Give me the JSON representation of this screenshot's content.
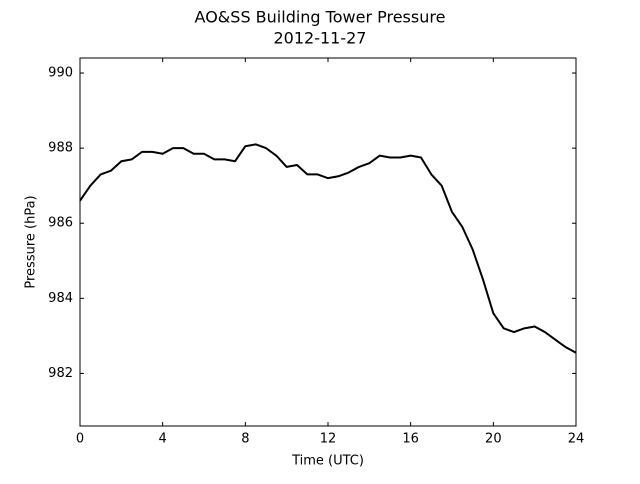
{
  "chart_data": {
    "type": "line",
    "title": "AO&SS Building Tower Pressure",
    "subtitle": "2012-11-27",
    "xlabel": "Time (UTC)",
    "ylabel": "Pressure (hPa)",
    "x": [
      0,
      0.5,
      1,
      1.5,
      2,
      2.5,
      3,
      3.5,
      4,
      4.5,
      5,
      5.5,
      6,
      6.5,
      7,
      7.5,
      8,
      8.5,
      9,
      9.5,
      10,
      10.5,
      11,
      11.5,
      12,
      12.5,
      13,
      13.5,
      14,
      14.5,
      15,
      15.5,
      16,
      16.5,
      17,
      17.5,
      18,
      18.5,
      19,
      19.5,
      20,
      20.5,
      21,
      21.5,
      22,
      22.5,
      23,
      23.5,
      24
    ],
    "series": [
      {
        "name": "Pressure",
        "color": "#000000",
        "values": [
          986.6,
          987.0,
          987.3,
          987.4,
          987.65,
          987.7,
          987.9,
          987.9,
          987.85,
          988.0,
          988.0,
          987.85,
          987.85,
          987.7,
          987.7,
          987.65,
          988.05,
          988.1,
          988.0,
          987.8,
          987.5,
          987.55,
          987.3,
          987.3,
          987.2,
          987.25,
          987.35,
          987.5,
          987.6,
          987.8,
          987.75,
          987.75,
          987.8,
          987.75,
          987.3,
          987.0,
          986.3,
          985.9,
          985.3,
          984.5,
          983.6,
          983.2,
          983.1,
          983.2,
          983.25,
          983.1,
          982.9,
          982.7,
          982.55
        ]
      }
    ],
    "xlim": [
      0,
      24
    ],
    "xticks": [
      0,
      4,
      8,
      12,
      16,
      20,
      24
    ],
    "ylim": [
      980.6,
      990.4
    ],
    "yticks": [
      982,
      984,
      986,
      988,
      990
    ]
  }
}
